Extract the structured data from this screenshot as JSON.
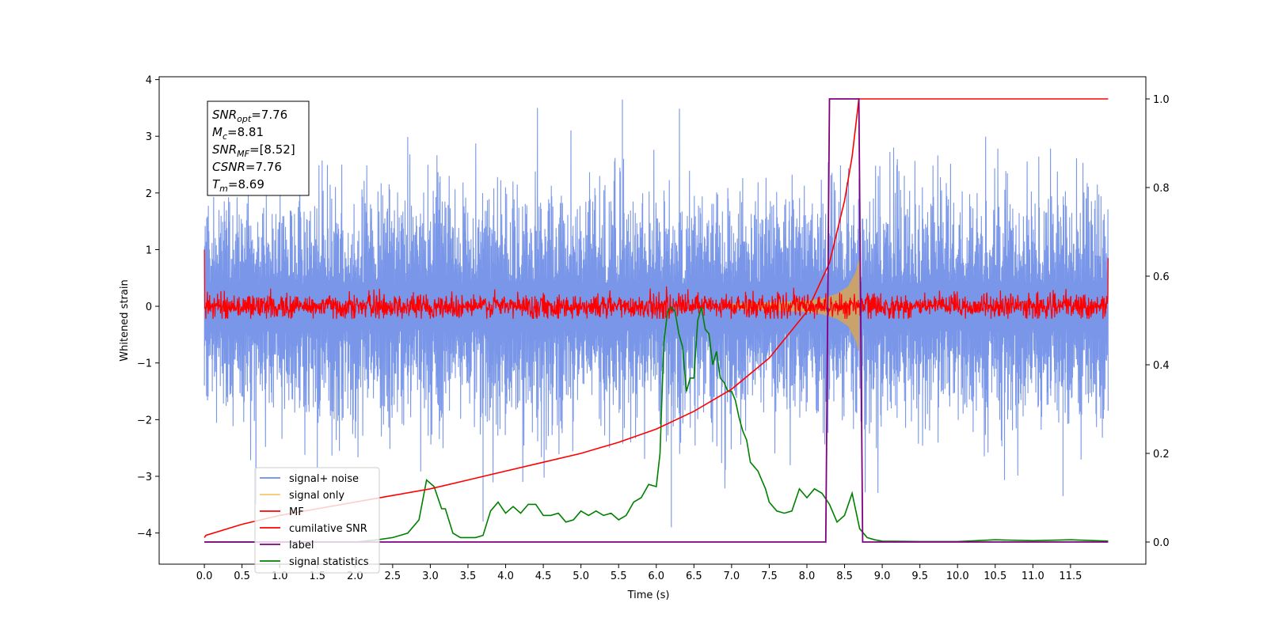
{
  "chart_data": {
    "type": "line",
    "xlabel": "Time (s)",
    "ylabel": "Whitened strain",
    "xlim": [
      -0.6,
      12.5
    ],
    "ylim_left": [
      -4.55,
      4.05
    ],
    "ylim_right": [
      -0.05,
      1.05
    ],
    "x_ticks": [
      "0.0",
      "0.5",
      "1.0",
      "1.5",
      "2.0",
      "2.5",
      "3.0",
      "3.5",
      "4.0",
      "4.5",
      "5.0",
      "5.5",
      "6.0",
      "6.5",
      "7.0",
      "7.5",
      "8.0",
      "8.5",
      "9.0",
      "9.5",
      "10.0",
      "10.5",
      "11.0",
      "11.5"
    ],
    "y_ticks_left": [
      "−4",
      "−3",
      "−2",
      "−1",
      "0",
      "1",
      "2",
      "3",
      "4"
    ],
    "y_ticks_right": [
      "0.0",
      "0.2",
      "0.4",
      "0.6",
      "0.8",
      "1.0"
    ],
    "annotation": [
      {
        "sym": "SNR",
        "sub": "opt",
        "val": "=7.76"
      },
      {
        "sym": "M",
        "sub": "c",
        "val": "=8.81"
      },
      {
        "sym": "SNR",
        "sub": "MF",
        "val": "=[8.52]"
      },
      {
        "sym": "CSNR",
        "sub": "",
        "val": "=7.76"
      },
      {
        "sym": "T",
        "sub": "m",
        "val": "=8.69"
      }
    ],
    "legend": [
      {
        "label": "signal+ noise",
        "color": "#6a8be6"
      },
      {
        "label": "signal only",
        "color": "#f5c96a"
      },
      {
        "label": "MF",
        "color": "#ff0000"
      },
      {
        "label": "cumilative SNR",
        "color": "#ff0000"
      },
      {
        "label": "label",
        "color": "#800080"
      },
      {
        "label": "signal statistics",
        "color": "#008000"
      }
    ],
    "legend_position": "lower-left",
    "grid": false,
    "noise": {
      "x_start": 0.0,
      "x_end": 12.0,
      "axis": "left",
      "typical_abs": 1.5,
      "max": 3.65,
      "min": -3.9,
      "color": "#6a8be6"
    },
    "mf": {
      "axis": "left",
      "typical_abs": 0.12,
      "peak": 0.35,
      "color": "#ff0000"
    },
    "signal_envelope": {
      "axis": "left",
      "color": "#c9a36b",
      "x": [
        7.0,
        7.5,
        8.0,
        8.2,
        8.4,
        8.55,
        8.65,
        8.69
      ],
      "amp": [
        0.05,
        0.07,
        0.1,
        0.14,
        0.22,
        0.35,
        0.6,
        0.8
      ]
    },
    "cumulative_snr": {
      "axis": "right",
      "color": "#ff0000",
      "x": [
        0.0,
        0.02,
        0.5,
        1.0,
        1.5,
        2.0,
        2.5,
        3.0,
        3.5,
        4.0,
        4.5,
        5.0,
        5.5,
        6.0,
        6.5,
        7.0,
        7.5,
        8.0,
        8.3,
        8.5,
        8.6,
        8.69,
        12.0
      ],
      "y": [
        0.01,
        0.015,
        0.04,
        0.06,
        0.075,
        0.09,
        0.105,
        0.12,
        0.14,
        0.16,
        0.18,
        0.2,
        0.225,
        0.255,
        0.295,
        0.345,
        0.415,
        0.52,
        0.63,
        0.77,
        0.87,
        1.0,
        1.0
      ]
    },
    "label_series": {
      "axis": "right",
      "color": "#800080",
      "x": [
        0.0,
        8.25,
        8.3,
        8.69,
        8.74,
        12.0
      ],
      "y": [
        0.0,
        0.0,
        1.0,
        1.0,
        0.0,
        0.0
      ]
    },
    "signal_statistics": {
      "axis": "right",
      "color": "#008000",
      "x": [
        0.0,
        1.0,
        2.0,
        2.3,
        2.5,
        2.7,
        2.85,
        2.95,
        3.05,
        3.15,
        3.2,
        3.3,
        3.4,
        3.5,
        3.6,
        3.7,
        3.8,
        3.9,
        4.0,
        4.1,
        4.2,
        4.3,
        4.4,
        4.5,
        4.6,
        4.7,
        4.8,
        4.9,
        5.0,
        5.1,
        5.2,
        5.3,
        5.4,
        5.5,
        5.6,
        5.7,
        5.8,
        5.9,
        6.0,
        6.05,
        6.1,
        6.15,
        6.2,
        6.25,
        6.3,
        6.35,
        6.4,
        6.45,
        6.5,
        6.55,
        6.6,
        6.65,
        6.7,
        6.75,
        6.8,
        6.85,
        6.9,
        6.95,
        7.0,
        7.05,
        7.1,
        7.15,
        7.2,
        7.25,
        7.3,
        7.35,
        7.4,
        7.45,
        7.5,
        7.6,
        7.7,
        7.8,
        7.9,
        8.0,
        8.1,
        8.2,
        8.3,
        8.4,
        8.5,
        8.6,
        8.7,
        8.8,
        8.9,
        9.0,
        9.5,
        10.0,
        10.5,
        11.0,
        11.5,
        12.0
      ],
      "y": [
        0.0,
        0.0,
        0.0,
        0.005,
        0.01,
        0.02,
        0.05,
        0.14,
        0.125,
        0.075,
        0.075,
        0.02,
        0.01,
        0.01,
        0.01,
        0.015,
        0.07,
        0.09,
        0.065,
        0.08,
        0.065,
        0.085,
        0.085,
        0.06,
        0.06,
        0.065,
        0.045,
        0.05,
        0.07,
        0.06,
        0.07,
        0.06,
        0.065,
        0.05,
        0.06,
        0.09,
        0.1,
        0.13,
        0.125,
        0.2,
        0.45,
        0.52,
        0.53,
        0.52,
        0.47,
        0.44,
        0.34,
        0.37,
        0.37,
        0.5,
        0.53,
        0.48,
        0.47,
        0.4,
        0.43,
        0.37,
        0.36,
        0.34,
        0.34,
        0.32,
        0.28,
        0.25,
        0.23,
        0.18,
        0.17,
        0.16,
        0.14,
        0.12,
        0.09,
        0.07,
        0.065,
        0.07,
        0.12,
        0.1,
        0.12,
        0.11,
        0.085,
        0.045,
        0.06,
        0.11,
        0.03,
        0.01,
        0.005,
        0.002,
        0.001,
        0.001,
        0.005,
        0.003,
        0.005,
        0.002
      ]
    }
  }
}
